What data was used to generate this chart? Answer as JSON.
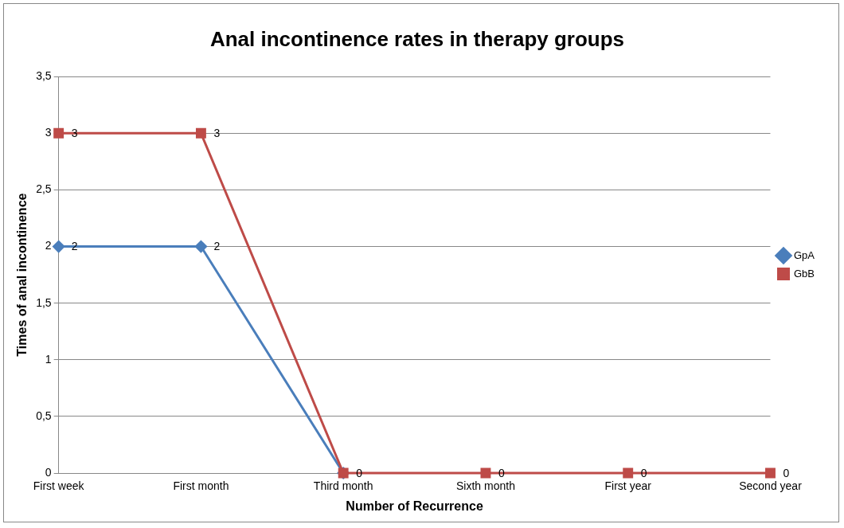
{
  "chart_data": {
    "type": "line",
    "title": "Anal incontinence rates in therapy groups",
    "xlabel": "Number of Recurrence",
    "ylabel": "Times of anal incontinence",
    "categories": [
      "First week",
      "First month",
      "Third month",
      "Sixth month",
      "First year",
      "Second year"
    ],
    "series": [
      {
        "name": "GpA",
        "color": "#4a7ebb",
        "marker": "diamond",
        "values": [
          2,
          2,
          0,
          null,
          null,
          null
        ],
        "value_labels": [
          "2",
          "2",
          null,
          null,
          null,
          null
        ]
      },
      {
        "name": "GbB",
        "color": "#be4b48",
        "marker": "square",
        "values": [
          3,
          3,
          0,
          0,
          0,
          0
        ],
        "value_labels": [
          "3",
          "3",
          "0",
          "0",
          "0",
          "0"
        ]
      }
    ],
    "ylim": [
      0,
      3.5
    ],
    "yticks": [
      0,
      {
        "value": 0.5,
        "label": "0,5"
      },
      1,
      {
        "value": 1.5,
        "label": "1,5"
      },
      2,
      {
        "value": 2.5,
        "label": "2,5"
      },
      3,
      {
        "value": 3.5,
        "label": "3,5"
      }
    ],
    "grid": "y",
    "legend": "right",
    "line_style": "solid"
  }
}
